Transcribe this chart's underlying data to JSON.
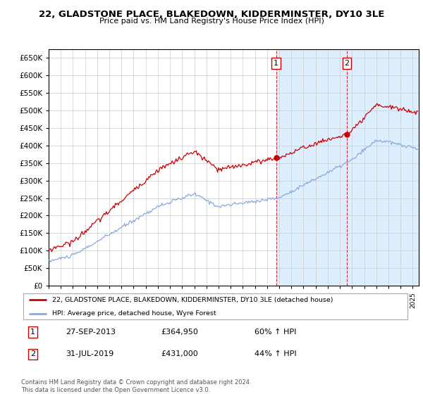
{
  "title": "22, GLADSTONE PLACE, BLAKEDOWN, KIDDERMINSTER, DY10 3LE",
  "subtitle": "Price paid vs. HM Land Registry's House Price Index (HPI)",
  "ylim": [
    0,
    675000
  ],
  "xlim_start": 1995.0,
  "xlim_end": 2025.5,
  "purchase1_date": 2013.74,
  "purchase1_price": 364950,
  "purchase2_date": 2019.58,
  "purchase2_price": 431000,
  "legend_house": "22, GLADSTONE PLACE, BLAKEDOWN, KIDDERMINSTER, DY10 3LE (detached house)",
  "legend_hpi": "HPI: Average price, detached house, Wyre Forest",
  "table_row1": [
    "1",
    "27-SEP-2013",
    "£364,950",
    "60% ↑ HPI"
  ],
  "table_row2": [
    "2",
    "31-JUL-2019",
    "£431,000",
    "44% ↑ HPI"
  ],
  "footnote": "Contains HM Land Registry data © Crown copyright and database right 2024.\nThis data is licensed under the Open Government Licence v3.0.",
  "house_color": "#cc0000",
  "hpi_color": "#88aadd",
  "vline_color": "#cc0000",
  "grid_color": "#cccccc",
  "span_color": "#ddeeff"
}
